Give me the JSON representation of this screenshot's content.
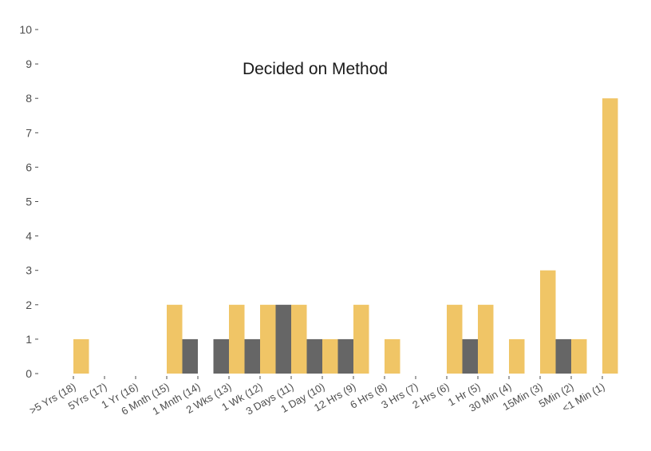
{
  "chart_data": {
    "type": "bar",
    "title": "Decided on Method",
    "xlabel": "",
    "ylabel": "",
    "ylim": [
      0,
      10
    ],
    "yticks": [
      0,
      1,
      2,
      3,
      4,
      5,
      6,
      7,
      8,
      9,
      10
    ],
    "grid": false,
    "legend": "none",
    "categories": [
      ">5 Yrs (18)",
      "5Yrs (17)",
      "1 Yr (16)",
      "6 Mnth (15)",
      "1 Mnth (14)",
      "2 Wks (13)",
      "1 Wk (12)",
      "3 Days (11)",
      "1 Day (10)",
      "12 Hrs (9)",
      "6 Hrs (8)",
      "3 Hrs (7)",
      "2 Hrs (6)",
      "1 Hr (5)",
      "30 Min (4)",
      "15Min (3)",
      "5Min (2)",
      "<1 Min (1)"
    ],
    "series": [
      {
        "color": "#666666",
        "values": [
          0,
          0,
          0,
          0,
          1,
          1,
          1,
          2,
          1,
          1,
          0,
          0,
          0,
          1,
          0,
          0,
          1,
          0
        ]
      },
      {
        "color": "#f0c566",
        "values": [
          1,
          0,
          0,
          2,
          0,
          2,
          2,
          2,
          1,
          2,
          1,
          0,
          2,
          2,
          1,
          3,
          1,
          8
        ]
      }
    ]
  }
}
